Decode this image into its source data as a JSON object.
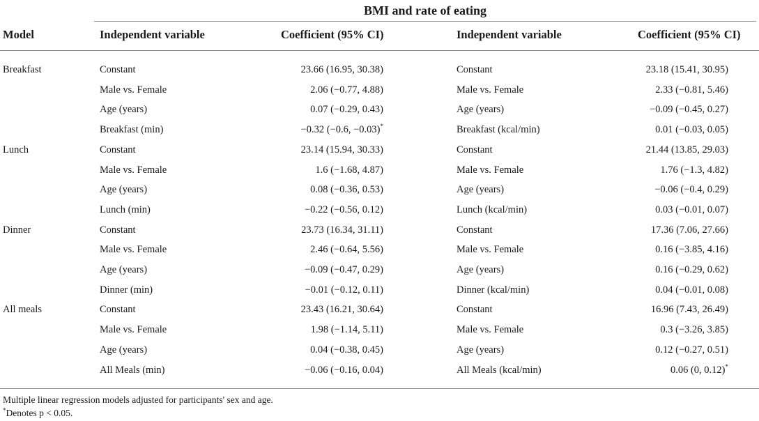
{
  "table": {
    "super_header": "BMI and rate of eating",
    "headers": {
      "model": "Model",
      "indep1": "Independent variable",
      "coef1": "Coefficient (95% CI)",
      "indep2": "Independent variable",
      "coef2": "Coefficient (95% CI)"
    },
    "groups": [
      {
        "model": "Breakfast",
        "rows": [
          {
            "var1": "Constant",
            "coef1": "23.66 (16.95, 30.38)",
            "var2": "Constant",
            "coef2": "23.18 (15.41, 30.95)"
          },
          {
            "var1": "Male vs. Female",
            "coef1": "2.06 (−0.77, 4.88)",
            "var2": "Male vs. Female",
            "coef2": "2.33 (−0.81, 5.46)"
          },
          {
            "var1": "Age (years)",
            "coef1": "0.07 (−0.29, 0.43)",
            "var2": "Age (years)",
            "coef2": "−0.09 (−0.45, 0.27)"
          },
          {
            "var1": "Breakfast (min)",
            "coef1": "−0.32 (−0.6, −0.03)*",
            "var2": "Breakfast (kcal/min)",
            "coef2": "0.01 (−0.03, 0.05)"
          }
        ]
      },
      {
        "model": "Lunch",
        "rows": [
          {
            "var1": "Constant",
            "coef1": "23.14 (15.94, 30.33)",
            "var2": "Constant",
            "coef2": "21.44 (13.85, 29.03)"
          },
          {
            "var1": "Male vs. Female",
            "coef1": "1.6 (−1.68, 4.87)",
            "var2": "Male vs. Female",
            "coef2": "1.76 (−1.3, 4.82)"
          },
          {
            "var1": "Age (years)",
            "coef1": "0.08 (−0.36, 0.53)",
            "var2": "Age (years)",
            "coef2": "−0.06 (−0.4, 0.29)"
          },
          {
            "var1": "Lunch (min)",
            "coef1": "−0.22 (−0.56, 0.12)",
            "var2": "Lunch (kcal/min)",
            "coef2": "0.03 (−0.01, 0.07)"
          }
        ]
      },
      {
        "model": "Dinner",
        "rows": [
          {
            "var1": "Constant",
            "coef1": "23.73 (16.34, 31.11)",
            "var2": "Constant",
            "coef2": "17.36 (7.06, 27.66)"
          },
          {
            "var1": "Male vs. Female",
            "coef1": "2.46 (−0.64, 5.56)",
            "var2": "Male vs. Female",
            "coef2": "0.16 (−3.85, 4.16)"
          },
          {
            "var1": "Age (years)",
            "coef1": "−0.09 (−0.47, 0.29)",
            "var2": "Age (years)",
            "coef2": "0.16 (−0.29, 0.62)"
          },
          {
            "var1": "Dinner (min)",
            "coef1": "−0.01 (−0.12, 0.11)",
            "var2": "Dinner (kcal/min)",
            "coef2": "0.04 (−0.01, 0.08)"
          }
        ]
      },
      {
        "model": "All meals",
        "rows": [
          {
            "var1": "Constant",
            "coef1": "23.43 (16.21, 30.64)",
            "var2": "Constant",
            "coef2": "16.96 (7.43, 26.49)"
          },
          {
            "var1": "Male vs. Female",
            "coef1": "1.98 (−1.14, 5.11)",
            "var2": "Male vs. Female",
            "coef2": "0.3 (−3.26, 3.85)"
          },
          {
            "var1": "Age (years)",
            "coef1": "0.04 (−0.38, 0.45)",
            "var2": "Age (years)",
            "coef2": "0.12 (−0.27, 0.51)"
          },
          {
            "var1": "All Meals (min)",
            "coef1": "−0.06 (−0.16, 0.04)",
            "var2": "All Meals (kcal/min)",
            "coef2": "0.06 (0, 0.12)*"
          }
        ]
      }
    ],
    "footnotes": [
      "Multiple linear regression models adjusted for participants' sex and age.",
      "*Denotes p < 0.05."
    ]
  }
}
